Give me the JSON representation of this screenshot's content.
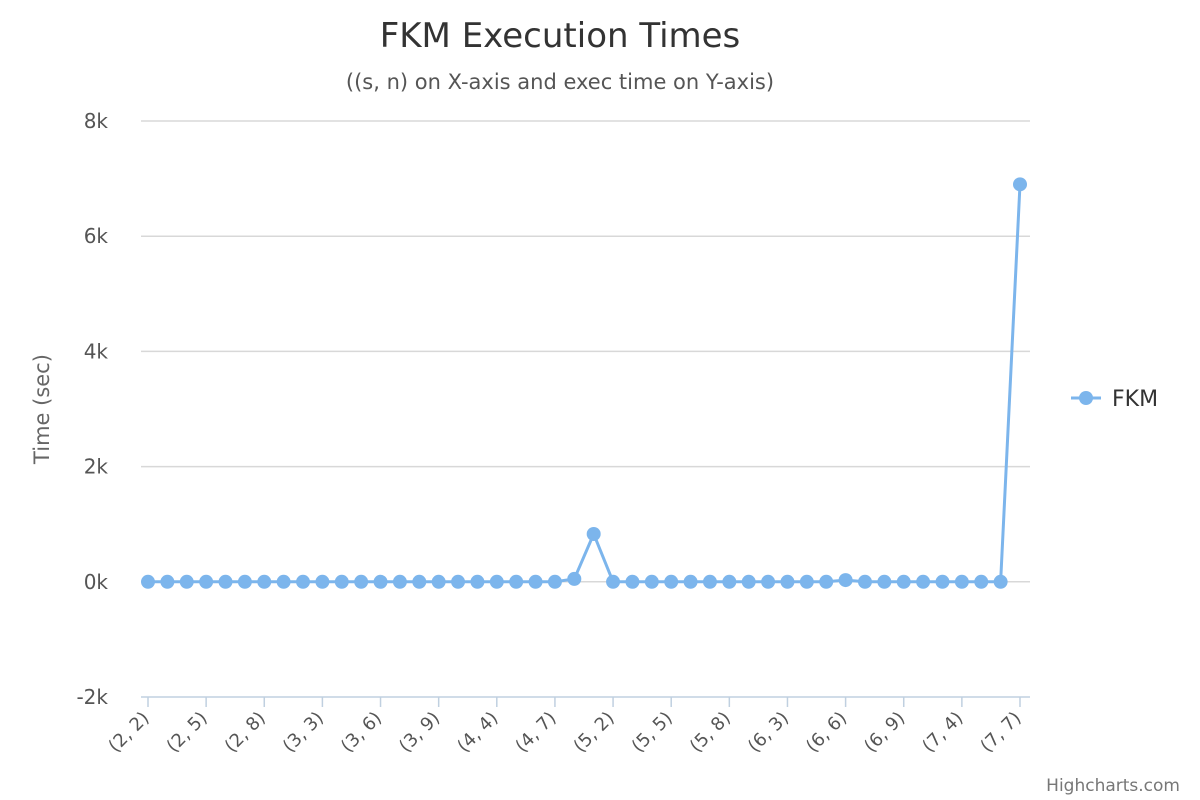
{
  "chart_data": {
    "type": "line",
    "title": "FKM Execution Times",
    "subtitle": "((s, n) on X-axis and exec time on Y-axis)",
    "ylabel": "Time (sec)",
    "xlabel": "",
    "ylim": [
      -2000,
      8000
    ],
    "yticks": [
      -2000,
      0,
      2000,
      4000,
      6000,
      8000
    ],
    "ytick_labels": [
      "-2k",
      "0k",
      "2k",
      "4k",
      "6k",
      "8k"
    ],
    "grid": true,
    "legend": {
      "position": "right",
      "entries": [
        "FKM"
      ]
    },
    "categories": [
      "(2, 2)",
      "(2, 3)",
      "(2, 4)",
      "(2, 5)",
      "(2, 6)",
      "(2, 7)",
      "(2, 8)",
      "(2, 9)",
      "(2, 10)",
      "(3, 3)",
      "(3, 4)",
      "(3, 5)",
      "(3, 6)",
      "(3, 7)",
      "(3, 8)",
      "(3, 9)",
      "(3, 10)",
      "(4, 2)",
      "(4, 4)",
      "(4, 5)",
      "(4, 6)",
      "(4, 7)",
      "(4, 8)",
      "(4, 9)",
      "(5, 2)",
      "(5, 3)",
      "(5, 4)",
      "(5, 5)",
      "(5, 6)",
      "(5, 7)",
      "(5, 8)",
      "(5, 9)",
      "(6, 2)",
      "(6, 3)",
      "(6, 4)",
      "(6, 5)",
      "(6, 6)",
      "(6, 7)",
      "(6, 8)",
      "(6, 9)",
      "(7, 2)",
      "(7, 3)",
      "(7, 4)",
      "(7, 5)",
      "(7, 6)",
      "(7, 7)"
    ],
    "x_tick_labels_shown": [
      "(2, 2)",
      "(2, 5)",
      "(2, 8)",
      "(3, 3)",
      "(3, 6)",
      "(3, 9)",
      "(4, 4)",
      "(4, 7)",
      "(5, 2)",
      "(5, 5)",
      "(5, 8)",
      "(6, 3)",
      "(6, 6)",
      "(6, 9)",
      "(7, 4)",
      "(7, 7)"
    ],
    "series": [
      {
        "name": "FKM",
        "color": "#7cb5ec",
        "values": [
          0,
          0,
          0,
          0,
          0,
          0,
          0,
          0,
          0,
          0,
          0,
          0,
          0,
          0,
          0,
          0,
          0,
          0,
          0,
          0,
          0,
          0,
          50,
          830,
          0,
          0,
          0,
          0,
          0,
          0,
          0,
          0,
          0,
          0,
          0,
          0,
          30,
          0,
          0,
          0,
          0,
          0,
          0,
          0,
          0,
          6900
        ]
      }
    ]
  },
  "credits": "Highcharts.com"
}
